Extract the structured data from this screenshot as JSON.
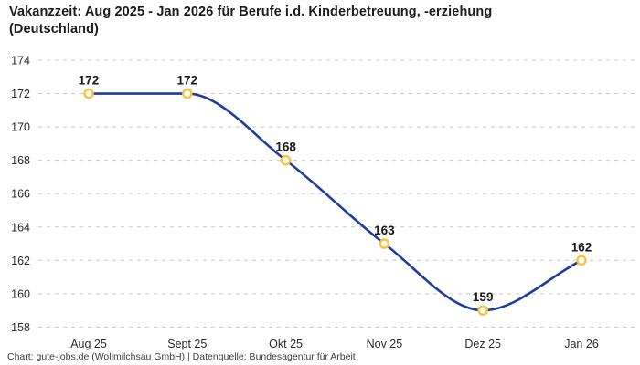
{
  "header": {
    "title_line1": "Vakanzzeit: Aug 2025 - Jan 2026 für Berufe i.d. Kinderbetreuung, -erziehung",
    "title_line2": "(Deutschland)"
  },
  "footer": {
    "credit": "Chart: gute-jobs.de (Wollmilchsau GmbH) | Datenquelle: Bundesagentur für Arbeit"
  },
  "chart_data": {
    "type": "line",
    "title": "Vakanzzeit: Aug 2025 - Jan 2026 für Berufe i.d. Kinderbetreuung, -erziehung (Deutschland)",
    "categories": [
      "Aug 25",
      "Sept 25",
      "Okt 25",
      "Nov 25",
      "Dez 25",
      "Jan 26"
    ],
    "series": [
      {
        "name": "Vakanzzeit",
        "values": [
          172,
          172,
          168,
          163,
          159,
          162
        ]
      }
    ],
    "xlabel": "",
    "ylabel": "",
    "ylim": [
      158,
      174
    ],
    "ytick_step": 2,
    "grid": "horizontal-dashed",
    "legend": "none",
    "curve": "monotone",
    "data_labels": true,
    "colors": {
      "line": "#1f3d9c",
      "marker_stroke": "#fcc232",
      "marker_fill": "#ffffff",
      "gridline": "#c9c9c9",
      "tick_text": "#2b2b2b",
      "data_label_text": "#1a1a1a",
      "background": "#ffffff"
    }
  }
}
